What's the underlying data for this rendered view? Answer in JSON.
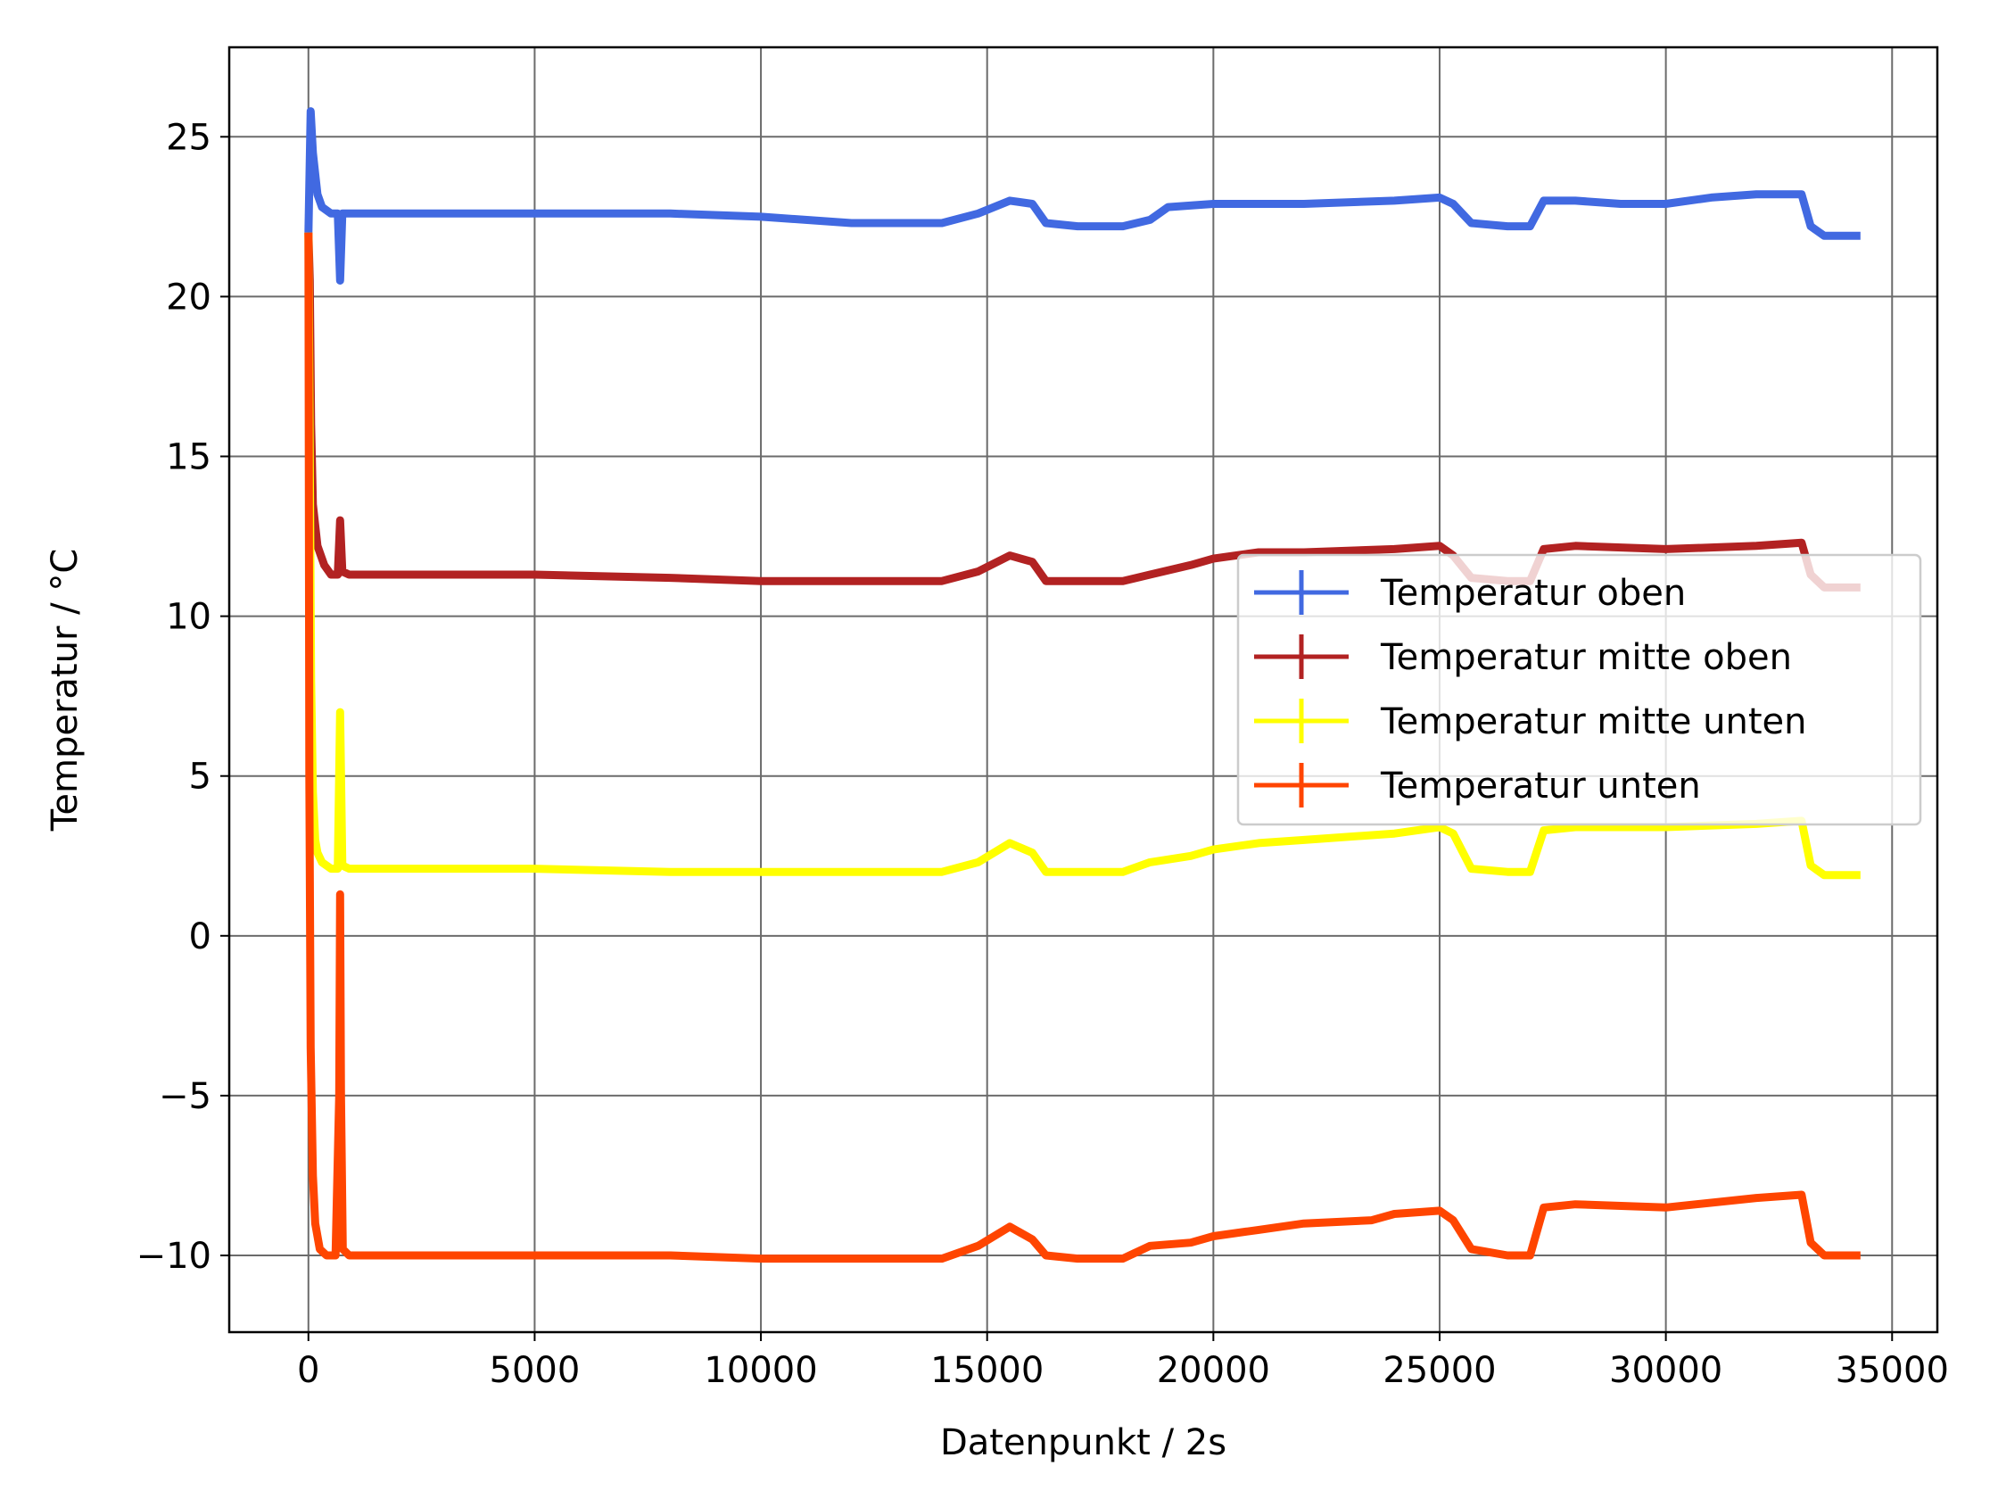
{
  "chart_data": {
    "type": "line",
    "xlabel": "Datenpunkt / 2s",
    "ylabel": "Temperatur / °C",
    "xlim": [
      -1750,
      36000
    ],
    "ylim": [
      -12.4,
      27.8
    ],
    "xticks": [
      0,
      5000,
      10000,
      15000,
      20000,
      25000,
      30000,
      35000
    ],
    "xtick_labels": [
      "0",
      "5000",
      "10000",
      "15000",
      "20000",
      "25000",
      "30000",
      "35000"
    ],
    "yticks": [
      -10,
      -5,
      0,
      5,
      10,
      15,
      20,
      25
    ],
    "ytick_labels": [
      "−10",
      "−5",
      "0",
      "5",
      "10",
      "15",
      "20",
      "25"
    ],
    "grid": true,
    "legend_position": "center-right",
    "series": [
      {
        "name": "Temperatur oben",
        "color": "#4169e1",
        "x": [
          0,
          50,
          100,
          200,
          300,
          500,
          650,
          700,
          750,
          900,
          1500,
          3000,
          5000,
          8000,
          10000,
          12000,
          14000,
          14800,
          15500,
          16000,
          16300,
          17000,
          18000,
          18600,
          19000,
          20000,
          22000,
          24000,
          25000,
          25300,
          25700,
          26500,
          27000,
          27300,
          28000,
          29000,
          30000,
          31000,
          32000,
          33000,
          33200,
          33500,
          34300
        ],
        "y": [
          22.0,
          25.8,
          24.5,
          23.2,
          22.8,
          22.6,
          22.6,
          20.5,
          22.6,
          22.6,
          22.6,
          22.6,
          22.6,
          22.6,
          22.5,
          22.3,
          22.3,
          22.6,
          23.0,
          22.9,
          22.3,
          22.2,
          22.2,
          22.4,
          22.8,
          22.9,
          22.9,
          23.0,
          23.1,
          22.9,
          22.3,
          22.2,
          22.2,
          23.0,
          23.0,
          22.9,
          22.9,
          23.1,
          23.2,
          23.2,
          22.2,
          21.9,
          21.9
        ]
      },
      {
        "name": "Temperatur mitte oben",
        "color": "#b22222",
        "x": [
          0,
          30,
          60,
          100,
          200,
          350,
          500,
          650,
          700,
          750,
          900,
          2000,
          5000,
          8000,
          10000,
          12000,
          14000,
          14800,
          15500,
          16000,
          16300,
          17000,
          18000,
          18600,
          19500,
          20000,
          21000,
          22000,
          24000,
          25000,
          25300,
          25700,
          26500,
          27000,
          27300,
          28000,
          30000,
          32000,
          33000,
          33200,
          33500,
          34300
        ],
        "y": [
          22.0,
          20.5,
          16.0,
          13.5,
          12.2,
          11.6,
          11.3,
          11.3,
          13.0,
          11.4,
          11.3,
          11.3,
          11.3,
          11.2,
          11.1,
          11.1,
          11.1,
          11.4,
          11.9,
          11.7,
          11.1,
          11.1,
          11.1,
          11.3,
          11.6,
          11.8,
          12.0,
          12.0,
          12.1,
          12.2,
          11.9,
          11.2,
          11.1,
          11.1,
          12.1,
          12.2,
          12.1,
          12.2,
          12.3,
          11.3,
          10.9,
          10.9
        ]
      },
      {
        "name": "Temperatur mitte unten",
        "color": "#ffff00",
        "x": [
          0,
          30,
          60,
          100,
          150,
          200,
          300,
          500,
          650,
          700,
          750,
          900,
          2000,
          5000,
          8000,
          10000,
          12000,
          14000,
          14800,
          15500,
          16000,
          16300,
          17000,
          18000,
          18600,
          19500,
          20000,
          21000,
          22000,
          24000,
          25000,
          25300,
          25700,
          26500,
          27000,
          27300,
          28000,
          30000,
          32000,
          33000,
          33200,
          33500,
          34300
        ],
        "y": [
          22.0,
          15.0,
          8.0,
          4.5,
          3.0,
          2.6,
          2.3,
          2.1,
          2.1,
          7.0,
          2.2,
          2.1,
          2.1,
          2.1,
          2.0,
          2.0,
          2.0,
          2.0,
          2.3,
          2.9,
          2.6,
          2.0,
          2.0,
          2.0,
          2.3,
          2.5,
          2.7,
          2.9,
          3.0,
          3.2,
          3.4,
          3.2,
          2.1,
          2.0,
          2.0,
          3.3,
          3.4,
          3.4,
          3.5,
          3.6,
          2.2,
          1.9,
          1.9
        ]
      },
      {
        "name": "Temperatur unten",
        "color": "#ff4500",
        "x": [
          0,
          20,
          50,
          100,
          150,
          250,
          400,
          600,
          680,
          700,
          720,
          760,
          900,
          2000,
          5000,
          8000,
          10000,
          12000,
          14000,
          14800,
          15500,
          16000,
          16300,
          17000,
          18000,
          18600,
          19500,
          20000,
          21000,
          22000,
          23500,
          24000,
          25000,
          25300,
          25700,
          26500,
          27000,
          27300,
          28000,
          30000,
          32000,
          33000,
          33200,
          33500,
          34300
        ],
        "y": [
          22.0,
          5.0,
          -3.5,
          -7.5,
          -9.0,
          -9.8,
          -10.0,
          -10.0,
          -5.0,
          1.3,
          -5.0,
          -9.8,
          -10.0,
          -10.0,
          -10.0,
          -10.0,
          -10.1,
          -10.1,
          -10.1,
          -9.7,
          -9.1,
          -9.5,
          -10.0,
          -10.1,
          -10.1,
          -9.7,
          -9.6,
          -9.4,
          -9.2,
          -9.0,
          -8.9,
          -8.7,
          -8.6,
          -8.9,
          -9.8,
          -10.0,
          -10.0,
          -8.5,
          -8.4,
          -8.5,
          -8.2,
          -8.1,
          -9.6,
          -10.0,
          -10.0
        ]
      }
    ]
  }
}
